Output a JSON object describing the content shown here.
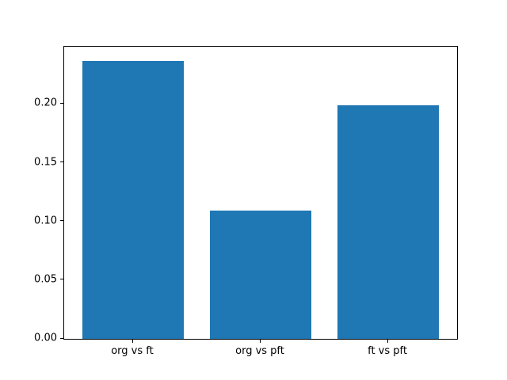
{
  "chart_data": {
    "type": "bar",
    "title": "",
    "xlabel": "",
    "ylabel": "",
    "categories": [
      "org vs ft",
      "org vs pft",
      "ft vs pft"
    ],
    "values": [
      0.237,
      0.109,
      0.199
    ],
    "ylim": [
      0,
      0.2489
    ],
    "yticks": [
      0,
      0.05,
      0.1,
      0.15,
      0.2
    ],
    "ytick_labels": [
      "0.00",
      "0.05",
      "0.10",
      "0.15",
      "0.20"
    ],
    "bar_color": "#1f77b4",
    "background_color": "#ffffff",
    "axis_color": "#000000",
    "grid": false,
    "legend": false,
    "bar_width_fraction": 0.8
  }
}
